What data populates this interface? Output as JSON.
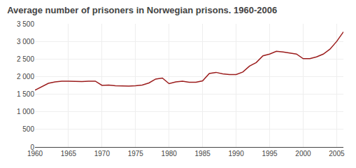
{
  "chart_data": {
    "type": "line",
    "title": "Average number of prisoners in Norwegian prisons. 1960-2006",
    "x": [
      1960,
      1961,
      1962,
      1963,
      1964,
      1965,
      1966,
      1967,
      1968,
      1969,
      1970,
      1971,
      1972,
      1973,
      1974,
      1975,
      1976,
      1977,
      1978,
      1979,
      1980,
      1981,
      1982,
      1983,
      1984,
      1985,
      1986,
      1987,
      1988,
      1989,
      1990,
      1991,
      1992,
      1993,
      1994,
      1995,
      1996,
      1997,
      1998,
      1999,
      2000,
      2001,
      2002,
      2003,
      2004,
      2005,
      2006
    ],
    "values": [
      1615,
      1720,
      1810,
      1850,
      1870,
      1870,
      1860,
      1860,
      1870,
      1870,
      1750,
      1760,
      1740,
      1730,
      1730,
      1740,
      1760,
      1820,
      1930,
      1960,
      1800,
      1850,
      1870,
      1840,
      1840,
      1880,
      2090,
      2120,
      2080,
      2060,
      2060,
      2130,
      2300,
      2400,
      2590,
      2640,
      2720,
      2700,
      2670,
      2640,
      2510,
      2510,
      2560,
      2640,
      2780,
      3000,
      3270
    ],
    "color": "#9b1c1c",
    "xlim": [
      1960,
      2006
    ],
    "xticks": [
      1960,
      1965,
      1970,
      1975,
      1980,
      1985,
      1990,
      1995,
      2000,
      2005
    ],
    "ylim": [
      0,
      3500
    ],
    "yticks": [
      0,
      500,
      {
        "value": 1000,
        "label": "1 000"
      },
      {
        "value": 1500,
        "label": "1 500"
      },
      {
        "value": 2000,
        "label": "2 000"
      },
      {
        "value": 2500,
        "label": "2 500"
      },
      {
        "value": 3000,
        "label": "3 000"
      },
      {
        "value": 3500,
        "label": "3 500"
      }
    ],
    "grid": true
  }
}
